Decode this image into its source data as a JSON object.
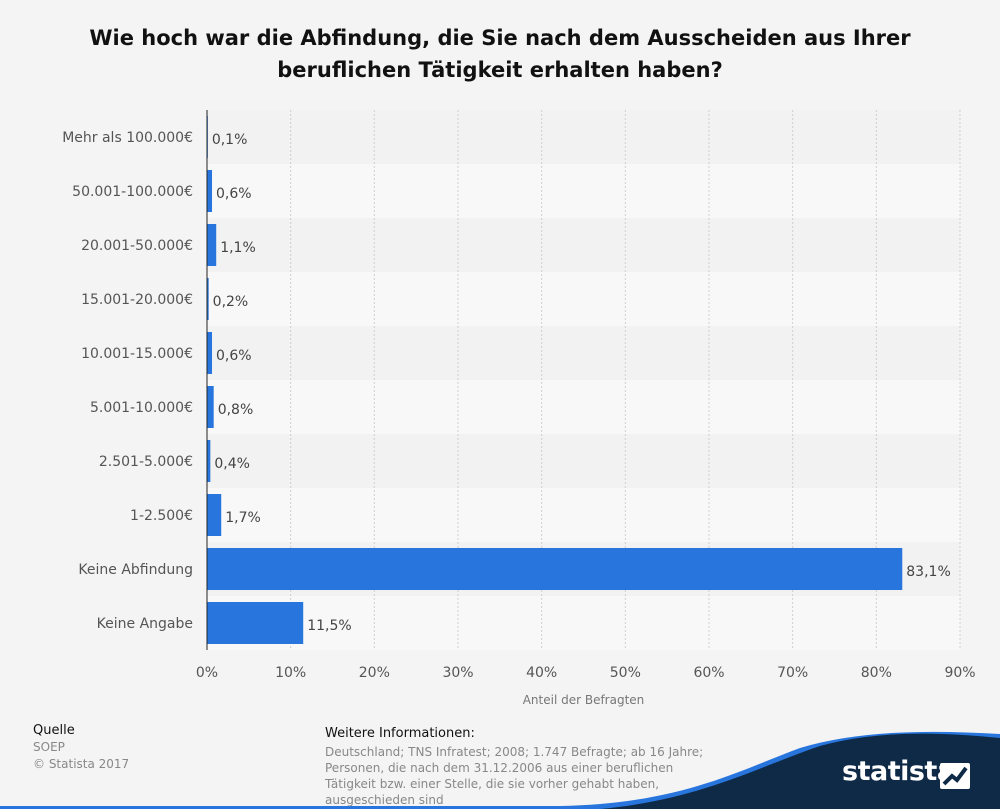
{
  "chart_data": {
    "type": "bar",
    "orientation": "horizontal",
    "title": "Wie hoch war die Abfindung, die Sie nach dem Ausscheiden aus Ihrer beruflichen Tätigkeit erhalten haben?",
    "title_lines": [
      "Wie hoch war die Abfindung, die Sie nach dem Ausscheiden aus Ihrer",
      "beruflichen Tätigkeit erhalten haben?"
    ],
    "categories": [
      "Mehr als 100.000€",
      "50.001-100.000€",
      "20.001-50.000€",
      "15.001-20.000€",
      "10.001-15.000€",
      "5.001-10.000€",
      "2.501-5.000€",
      "1-2.500€",
      "Keine Abfindung",
      "Keine Angabe"
    ],
    "values": [
      0.1,
      0.6,
      1.1,
      0.2,
      0.6,
      0.8,
      0.4,
      1.7,
      83.1,
      11.5
    ],
    "value_labels": [
      "0,1%",
      "0,6%",
      "1,1%",
      "0,2%",
      "0,6%",
      "0,8%",
      "0,4%",
      "1,7%",
      "83,1%",
      "11,5%"
    ],
    "xlim": [
      0,
      90
    ],
    "xticks": [
      0,
      10,
      20,
      30,
      40,
      50,
      60,
      70,
      80,
      90
    ],
    "xtick_labels": [
      "0%",
      "10%",
      "20%",
      "30%",
      "40%",
      "50%",
      "60%",
      "70%",
      "80%",
      "90%"
    ],
    "xlabel": "Anteil der Befragten",
    "ylabel": "",
    "grid": true,
    "bar_color": "#2876dd"
  },
  "footer": {
    "source_heading": "Quelle",
    "source_lines": [
      "SOEP",
      "© Statista 2017"
    ],
    "info_heading": "Weitere Informationen:",
    "info_lines": [
      "Deutschland; TNS Infratest; 2008; 1.747 Befragte; ab 16 Jahre;",
      "Personen, die nach dem 31.12.2006 aus einer beruflichen",
      "Tätigkeit bzw. einer Stelle, die sie vorher gehabt haben,",
      "ausgeschieden sind"
    ]
  },
  "brand": {
    "name": "statista",
    "color": "#0e2a47"
  }
}
